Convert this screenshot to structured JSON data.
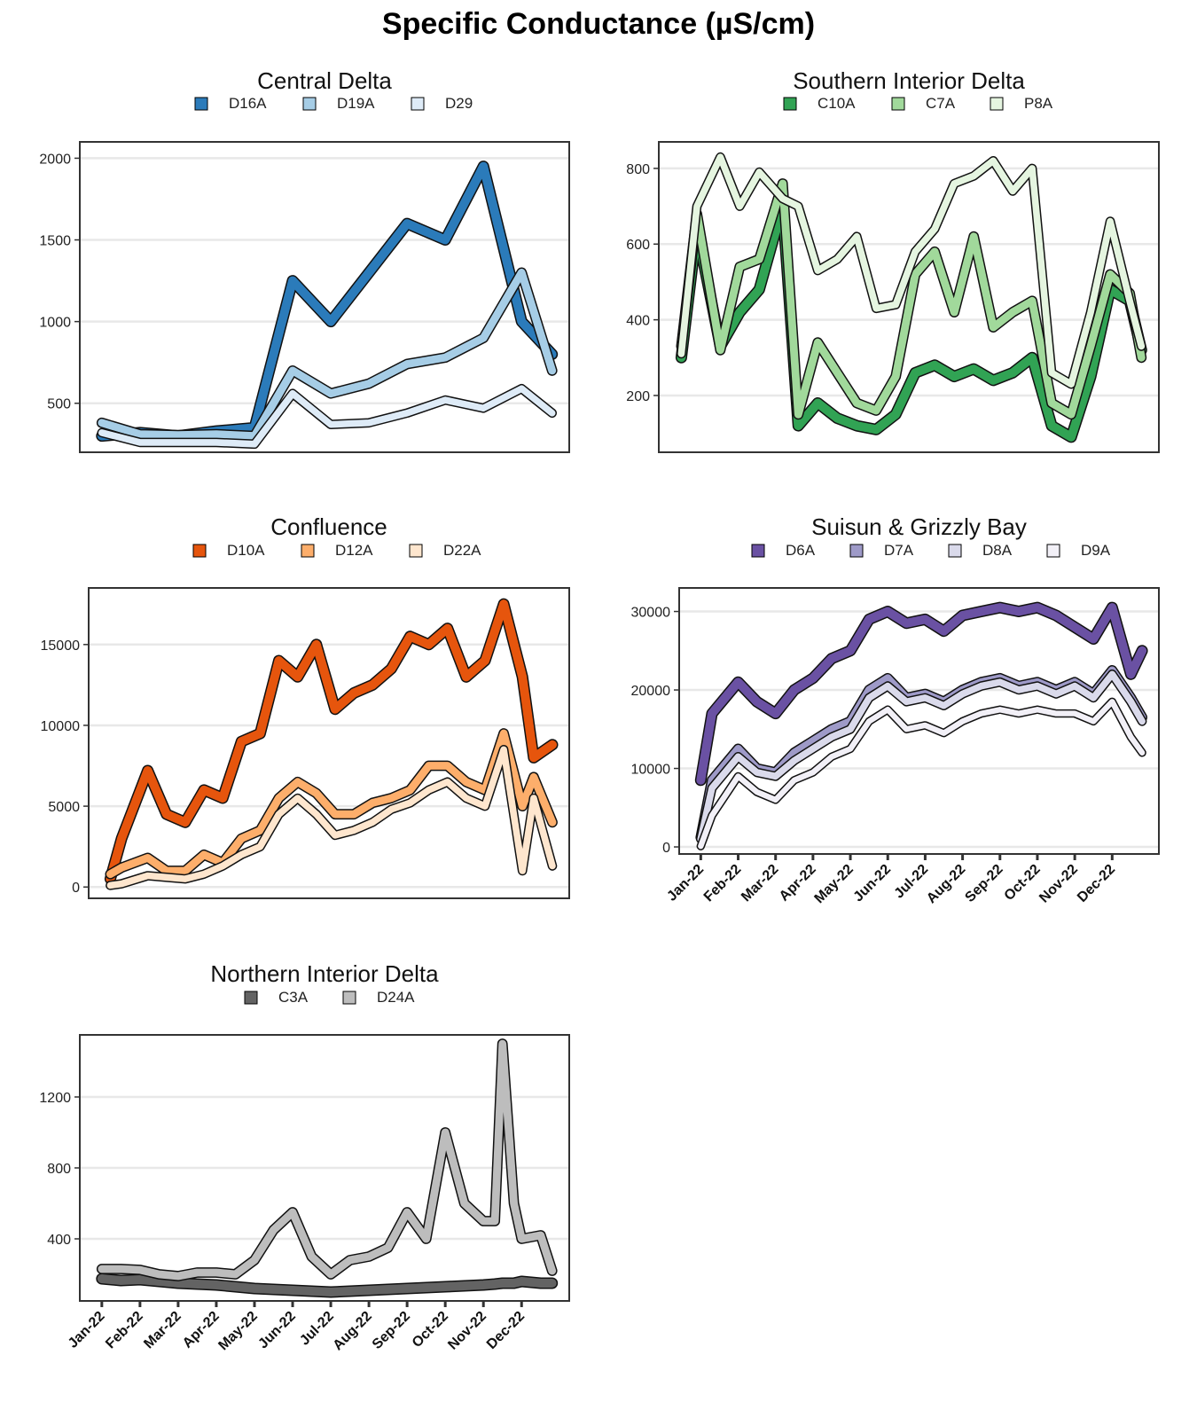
{
  "title": "Specific Conductance (µS/cm)",
  "x_tick_labels": [
    "Jan-22",
    "Feb-22",
    "Mar-22",
    "Apr-22",
    "May-22",
    "Jun-22",
    "Jul-22",
    "Aug-22",
    "Sep-22",
    "Oct-22",
    "Nov-22",
    "Dec-22"
  ],
  "chart_data": [
    {
      "type": "line",
      "title": "Central Delta",
      "ylim": [
        200,
        2100
      ],
      "yticks": [
        500,
        1000,
        1500,
        2000
      ],
      "grid": true,
      "legend": "top",
      "show_x_ticks": false,
      "months": [
        0,
        1,
        2,
        3,
        4,
        5,
        6,
        7,
        8,
        9,
        10,
        11,
        11.8
      ],
      "series": [
        {
          "name": "D16A",
          "color": "#2b7bba",
          "values": [
            300,
            320,
            300,
            330,
            350,
            1250,
            1000,
            1300,
            1600,
            1500,
            1950,
            1000,
            800
          ]
        },
        {
          "name": "D19A",
          "color": "#a6cde6",
          "values": [
            380,
            310,
            305,
            310,
            300,
            700,
            560,
            620,
            740,
            780,
            900,
            1300,
            700
          ]
        },
        {
          "name": "D29",
          "color": "#deebf7",
          "values": [
            320,
            260,
            260,
            260,
            250,
            560,
            370,
            380,
            440,
            520,
            470,
            590,
            440
          ]
        }
      ]
    },
    {
      "type": "line",
      "title": "Southern Interior Delta",
      "ylim": [
        50,
        870
      ],
      "yticks": [
        200,
        400,
        600,
        800
      ],
      "grid": true,
      "legend": "top",
      "show_x_ticks": false,
      "months": [
        0,
        0.4,
        1,
        1.5,
        2,
        2.6,
        3,
        3.5,
        4,
        4.5,
        5,
        5.5,
        6,
        6.5,
        7,
        7.5,
        8,
        8.5,
        9,
        9.5,
        10,
        10.5,
        11,
        11.5,
        11.8
      ],
      "series": [
        {
          "name": "C10A",
          "color": "#31a354",
          "values": [
            300,
            640,
            330,
            420,
            480,
            700,
            120,
            180,
            140,
            120,
            110,
            150,
            260,
            280,
            250,
            270,
            240,
            260,
            300,
            120,
            90,
            250,
            480,
            450,
            320
          ]
        },
        {
          "name": "C7A",
          "color": "#a1d99b",
          "values": [
            330,
            680,
            320,
            540,
            560,
            760,
            150,
            340,
            260,
            180,
            160,
            250,
            520,
            580,
            420,
            620,
            380,
            420,
            450,
            180,
            150,
            330,
            520,
            470,
            300
          ]
        },
        {
          "name": "P8A",
          "color": "#e5f5e0",
          "values": [
            310,
            700,
            830,
            700,
            790,
            720,
            700,
            530,
            560,
            620,
            430,
            440,
            580,
            640,
            760,
            780,
            820,
            740,
            800,
            260,
            230,
            420,
            660,
            450,
            330
          ]
        }
      ]
    },
    {
      "type": "line",
      "title": "Confluence",
      "ylim": [
        -700,
        18500
      ],
      "yticks": [
        0,
        5000,
        10000,
        15000
      ],
      "grid": true,
      "legend": "top",
      "show_x_ticks": false,
      "months": [
        0,
        0.3,
        1,
        1.5,
        2,
        2.5,
        3,
        3.5,
        4,
        4.5,
        5,
        5.5,
        6,
        6.5,
        7,
        7.5,
        8,
        8.5,
        9,
        9.5,
        10,
        10.5,
        11,
        11.3,
        11.8
      ],
      "series": [
        {
          "name": "D10A",
          "color": "#e6550d",
          "values": [
            500,
            3000,
            7200,
            4500,
            4000,
            6000,
            5500,
            9000,
            9500,
            14000,
            13000,
            15000,
            11000,
            12000,
            12500,
            13500,
            15500,
            15000,
            16000,
            13000,
            14000,
            17500,
            13000,
            8000,
            8800
          ]
        },
        {
          "name": "D12A",
          "color": "#fdae6b",
          "values": [
            800,
            1200,
            1800,
            1000,
            1000,
            2000,
            1500,
            3000,
            3500,
            5500,
            6500,
            5800,
            4500,
            4500,
            5200,
            5500,
            6000,
            7500,
            7500,
            6500,
            6000,
            9500,
            5000,
            6800,
            4000
          ]
        },
        {
          "name": "D22A",
          "color": "#fee6ce",
          "values": [
            100,
            200,
            700,
            600,
            500,
            800,
            1300,
            2000,
            2500,
            4500,
            5500,
            4500,
            3200,
            3500,
            4000,
            4800,
            5200,
            6000,
            6500,
            5500,
            5000,
            8500,
            1000,
            5500,
            1300
          ]
        }
      ]
    },
    {
      "type": "line",
      "title": "Suisun & Grizzly Bay",
      "ylim": [
        -900,
        33000
      ],
      "yticks": [
        0,
        10000,
        20000,
        30000
      ],
      "grid": true,
      "legend": "top",
      "show_x_ticks": true,
      "months": [
        0,
        0.3,
        1,
        1.5,
        2,
        2.5,
        3,
        3.5,
        4,
        4.5,
        5,
        5.5,
        6,
        6.5,
        7,
        7.5,
        8,
        8.5,
        9,
        9.5,
        10,
        10.5,
        11,
        11.5,
        11.8
      ],
      "series": [
        {
          "name": "D6A",
          "color": "#6a51a3",
          "values": [
            8500,
            17000,
            21000,
            18500,
            17000,
            20000,
            21500,
            24000,
            25000,
            29000,
            30000,
            28500,
            29000,
            27500,
            29500,
            30000,
            30500,
            30000,
            30500,
            29500,
            28000,
            26500,
            30500,
            22000,
            25000
          ]
        },
        {
          "name": "D7A",
          "color": "#9e9ac8",
          "values": [
            1200,
            8500,
            12500,
            10000,
            9500,
            12000,
            13500,
            15000,
            16000,
            20000,
            21500,
            19000,
            19500,
            18500,
            20000,
            21000,
            21500,
            20500,
            21000,
            20000,
            21000,
            19500,
            22500,
            19000,
            16500
          ]
        },
        {
          "name": "D8A",
          "color": "#dadaeb",
          "values": [
            1000,
            7500,
            11500,
            9500,
            9000,
            11000,
            12500,
            14000,
            15000,
            19000,
            20500,
            18500,
            19000,
            18000,
            19500,
            20500,
            21000,
            20000,
            20500,
            19500,
            20500,
            19000,
            22000,
            18500,
            16000
          ]
        },
        {
          "name": "D9A",
          "color": "#f2f0f7",
          "values": [
            100,
            4000,
            9000,
            7000,
            6000,
            8500,
            9500,
            11500,
            12500,
            16000,
            17500,
            15000,
            15500,
            14500,
            16000,
            17000,
            17500,
            17000,
            17500,
            17000,
            17000,
            16000,
            18500,
            14000,
            12000
          ]
        }
      ]
    },
    {
      "type": "line",
      "title": "Northern Interior Delta",
      "ylim": [
        50,
        1550
      ],
      "yticks": [
        400,
        800,
        1200
      ],
      "grid": true,
      "legend": "top",
      "show_x_ticks": true,
      "months": [
        0,
        0.5,
        1,
        1.5,
        2,
        2.5,
        3,
        3.5,
        4,
        4.5,
        5,
        5.5,
        6,
        6.5,
        7,
        7.5,
        8,
        8.5,
        9,
        9.5,
        10,
        10.3,
        10.5,
        10.8,
        11,
        11.5,
        11.8
      ],
      "series": [
        {
          "name": "C3A",
          "color": "#636363",
          "values": [
            175,
            165,
            170,
            160,
            150,
            145,
            140,
            130,
            120,
            115,
            110,
            105,
            100,
            105,
            110,
            115,
            120,
            125,
            130,
            135,
            140,
            145,
            150,
            150,
            160,
            150,
            150
          ]
        },
        {
          "name": "D24A",
          "color": "#bdbdbd",
          "values": [
            230,
            230,
            225,
            200,
            190,
            210,
            210,
            200,
            280,
            450,
            550,
            300,
            200,
            280,
            300,
            350,
            550,
            400,
            1000,
            600,
            500,
            500,
            1500,
            600,
            400,
            420,
            220
          ]
        }
      ]
    }
  ]
}
